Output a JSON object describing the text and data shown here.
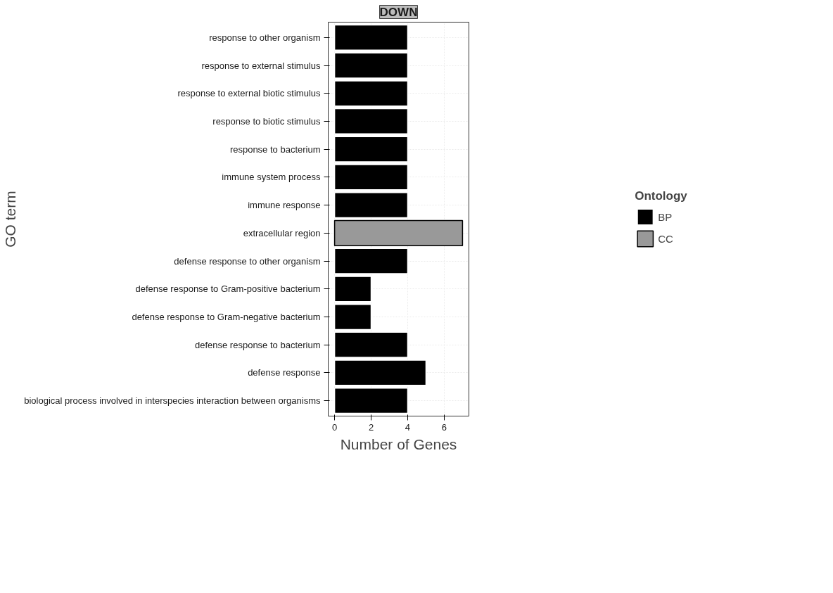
{
  "chart_data": {
    "type": "bar",
    "orientation": "horizontal",
    "title": "DOWN",
    "xlabel": "Number of Genes",
    "ylabel": "GO term",
    "legend_title": "Ontology",
    "legend": "right",
    "grid": true,
    "categories": [
      "response to other organism",
      "response to external stimulus",
      "response to external biotic stimulus",
      "response to biotic stimulus",
      "response to bacterium",
      "immune system process",
      "immune response",
      "extracellular region",
      "defense response to other organism",
      "defense response to Gram-positive bacterium",
      "defense response to Gram-negative bacterium",
      "defense response to bacterium",
      "defense response",
      "biological process involved in interspecies interaction between organisms"
    ],
    "series": [
      {
        "name": "BP",
        "color": "#000000",
        "values": [
          4,
          4,
          4,
          4,
          4,
          4,
          4,
          null,
          4,
          2,
          2,
          4,
          5,
          4
        ]
      },
      {
        "name": "CC",
        "color": "#999999",
        "values": [
          null,
          null,
          null,
          null,
          null,
          null,
          null,
          7,
          null,
          null,
          null,
          null,
          null,
          null
        ]
      }
    ],
    "xlim": [
      -0.35,
      7.35
    ],
    "xticks": [
      0,
      2,
      4,
      6
    ]
  }
}
